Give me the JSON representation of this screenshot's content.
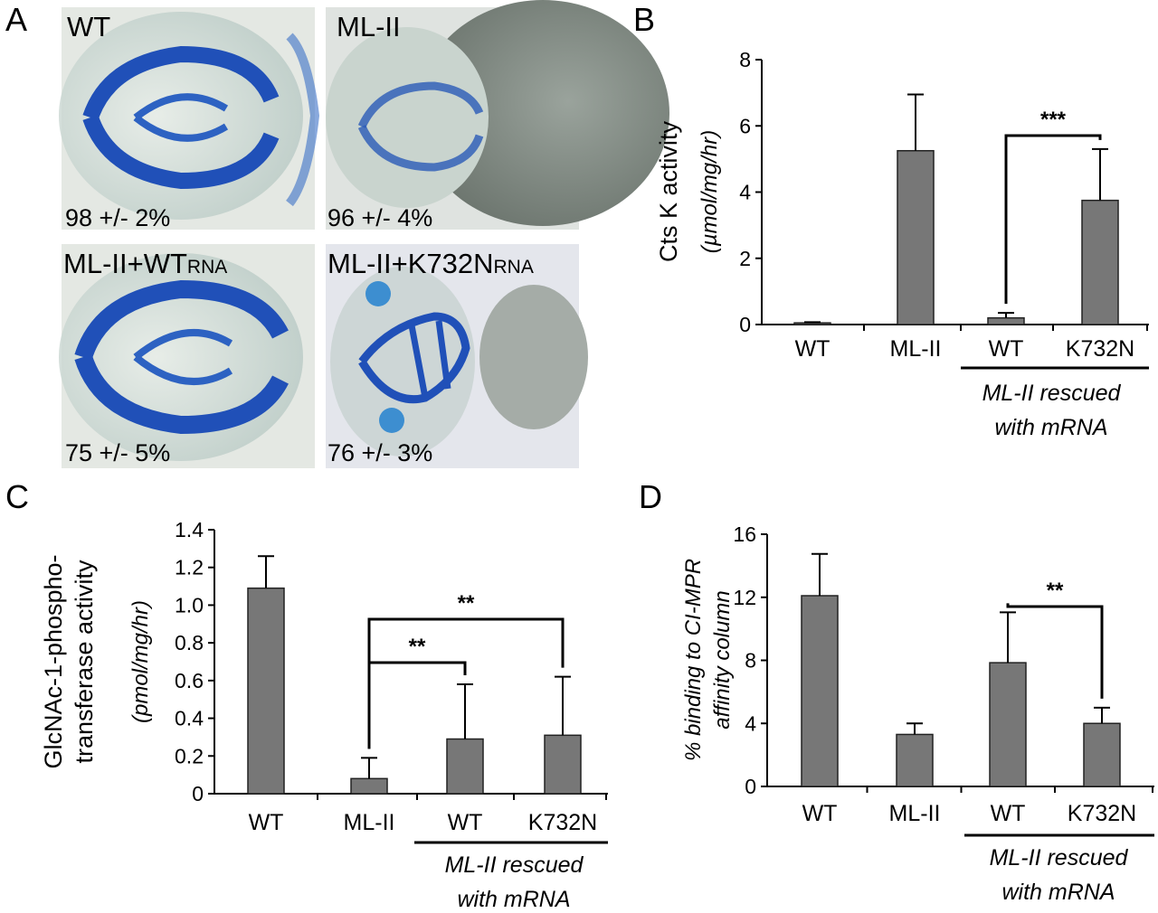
{
  "panel_letters": [
    "A",
    "B",
    "C",
    "D"
  ],
  "panel_a": {
    "images": [
      {
        "label": "WT",
        "label_sub": "",
        "percent": "98 +/- 2%"
      },
      {
        "label": "ML-II",
        "label_sub": "",
        "percent": "96 +/- 4%"
      },
      {
        "label": "ML-II+WT",
        "label_sub": "RNA",
        "percent": "75 +/- 5%"
      },
      {
        "label": "ML-II+K732N",
        "label_sub": "RNA",
        "percent": "76 +/- 3%"
      }
    ],
    "colors": {
      "cartilage": "#2050b8",
      "background": "#dfe4e0",
      "yolk": "#8e9690"
    }
  },
  "chart_data": [
    {
      "panel": "B",
      "type": "bar",
      "categories": [
        "WT",
        "ML-II",
        "WT",
        "K732N"
      ],
      "values": [
        0.05,
        5.25,
        0.2,
        3.75
      ],
      "errors": [
        0.02,
        1.7,
        0.15,
        1.55
      ],
      "ylabel": "Cts K activity",
      "ylabel_units": "(µmol/mg/hr)",
      "yticks": [
        "0",
        "2",
        "4",
        "6",
        "8"
      ],
      "ylim": [
        0,
        8
      ],
      "group_label": [
        "ML-II rescued",
        "with mRNA"
      ],
      "significance": [
        {
          "from": 2,
          "to": 3,
          "label": "***"
        }
      ],
      "bar_color": "#777777"
    },
    {
      "panel": "C",
      "type": "bar",
      "categories": [
        "WT",
        "ML-II",
        "WT",
        "K732N"
      ],
      "values": [
        1.09,
        0.08,
        0.29,
        0.31
      ],
      "errors": [
        0.17,
        0.11,
        0.29,
        0.31
      ],
      "ylabel": [
        "GlcNAc-1-phospho-",
        "transferase activity"
      ],
      "ylabel_units": "(pmol/mg/hr)",
      "yticks": [
        "0",
        "0.2",
        "0.4",
        "0.6",
        "0.8",
        "1.0",
        "1.2",
        "1.4"
      ],
      "ylim": [
        0,
        1.4
      ],
      "group_label": [
        "ML-II rescued",
        "with mRNA"
      ],
      "significance": [
        {
          "from": 1,
          "to": 2,
          "label": "**"
        },
        {
          "from": 1,
          "to": 3,
          "label": "**"
        }
      ],
      "bar_color": "#777777"
    },
    {
      "panel": "D",
      "type": "bar",
      "categories": [
        "WT",
        "ML-II",
        "WT",
        "K732N"
      ],
      "values": [
        12.1,
        3.3,
        7.85,
        4.0
      ],
      "errors": [
        2.65,
        0.7,
        3.2,
        1.0
      ],
      "ylabel": [
        "% binding to CI-MPR",
        "affinity column"
      ],
      "yticks": [
        "0",
        "4",
        "8",
        "12",
        "16"
      ],
      "ylim": [
        0,
        16
      ],
      "group_label": [
        "ML-II rescued",
        "with mRNA"
      ],
      "significance": [
        {
          "from": 2,
          "to": 3,
          "label": "**"
        }
      ],
      "bar_color": "#777777"
    }
  ]
}
